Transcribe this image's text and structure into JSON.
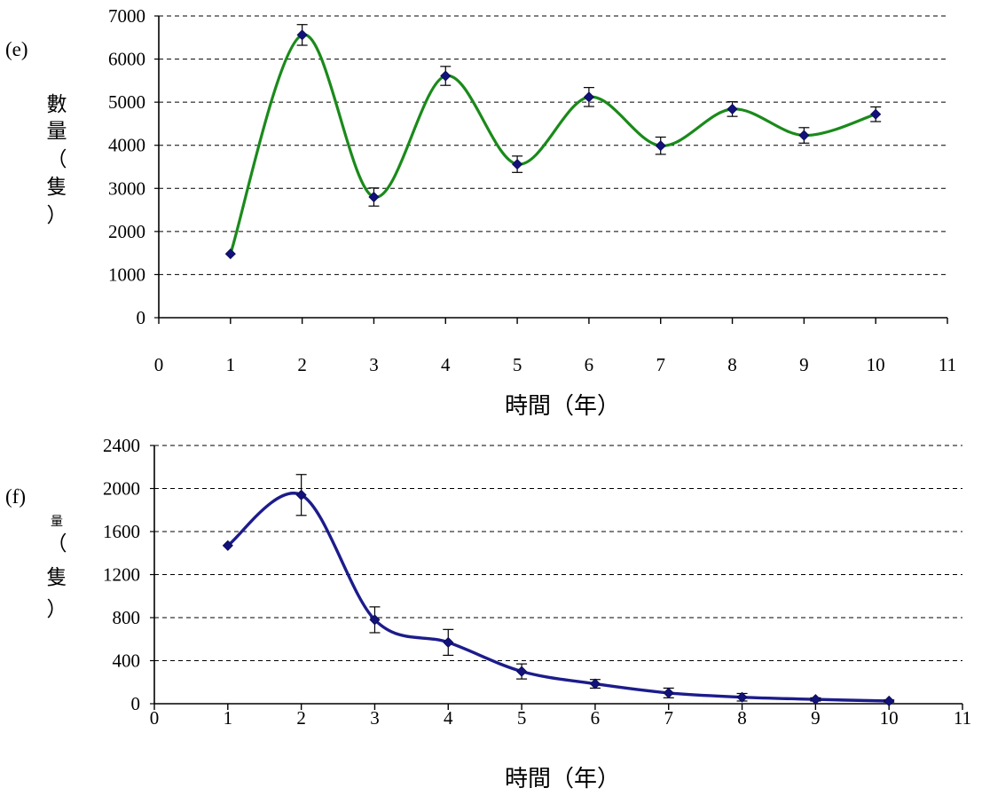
{
  "chart_data": [
    {
      "type": "line",
      "panel_label": "(e)",
      "xlabel": "時間（年）",
      "ylabel": "數量（隻）",
      "xlim": [
        0,
        11
      ],
      "ylim": [
        0,
        7000
      ],
      "x_ticks": [
        "0",
        "1",
        "2",
        "3",
        "4",
        "5",
        "6",
        "7",
        "8",
        "9",
        "10",
        "11"
      ],
      "y_ticks": [
        "0",
        "1000",
        "2000",
        "3000",
        "4000",
        "5000",
        "6000",
        "7000"
      ],
      "grid": "horizontal dashed",
      "line_color": "#1a8a1a",
      "marker_color": "#12127a",
      "x": [
        1,
        2,
        3,
        4,
        5,
        6,
        7,
        8,
        9,
        10
      ],
      "values": [
        1480,
        6560,
        2800,
        5610,
        3560,
        5120,
        3990,
        4840,
        4230,
        4720
      ],
      "error": [
        0,
        240,
        210,
        220,
        190,
        220,
        200,
        170,
        180,
        170
      ]
    },
    {
      "type": "line",
      "panel_label": "(f)",
      "xlabel": "時間（年）",
      "ylabel": "量（隻）",
      "xlim": [
        0,
        11
      ],
      "ylim": [
        0,
        2400
      ],
      "x_ticks": [
        "0",
        "1",
        "2",
        "3",
        "4",
        "5",
        "6",
        "7",
        "8",
        "9",
        "10",
        "11"
      ],
      "y_ticks": [
        "0",
        "400",
        "800",
        "1200",
        "1600",
        "2000",
        "2400"
      ],
      "grid": "horizontal dashed",
      "line_color": "#1c1c8c",
      "marker_color": "#12127a",
      "x": [
        1,
        2,
        3,
        4,
        5,
        6,
        7,
        8,
        9,
        10
      ],
      "values": [
        1470,
        1940,
        780,
        570,
        300,
        185,
        100,
        60,
        40,
        25
      ],
      "error": [
        0,
        190,
        120,
        120,
        70,
        40,
        45,
        35,
        15,
        10
      ]
    }
  ]
}
